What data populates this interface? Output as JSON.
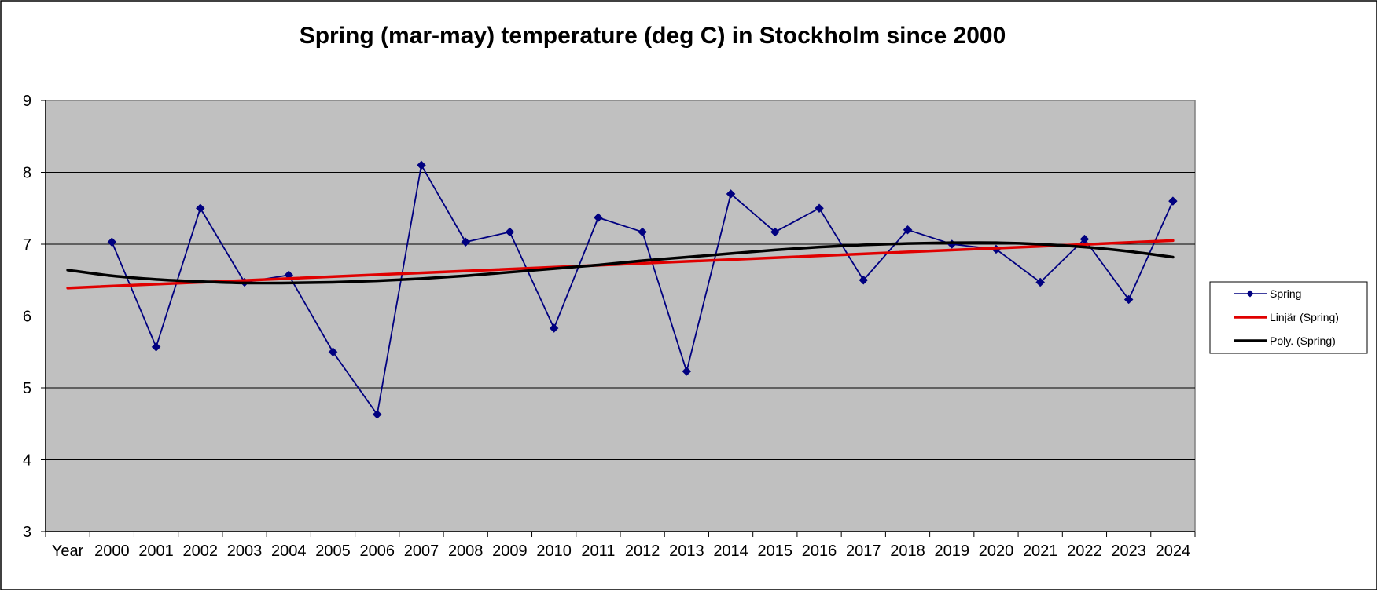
{
  "chart_data": {
    "type": "line",
    "title": "Spring (mar-may) temperature (deg C) in Stockholm since 2000",
    "xlabel": "",
    "ylabel": "",
    "ylim": [
      3,
      9
    ],
    "yticks": [
      "3",
      "4",
      "5",
      "6",
      "7",
      "8",
      "9"
    ],
    "categories": [
      "Year",
      "2000",
      "2001",
      "2002",
      "2003",
      "2004",
      "2005",
      "2006",
      "2007",
      "2008",
      "2009",
      "2010",
      "2011",
      "2012",
      "2013",
      "2014",
      "2015",
      "2016",
      "2017",
      "2018",
      "2019",
      "2020",
      "2021",
      "2022",
      "2023",
      "2024"
    ],
    "grid": true,
    "legend_position": "right",
    "series": [
      {
        "name": "Spring",
        "type": "line-marker",
        "color": "#000080",
        "x": [
          2000,
          2001,
          2002,
          2003,
          2004,
          2005,
          2006,
          2007,
          2008,
          2009,
          2010,
          2011,
          2012,
          2013,
          2014,
          2015,
          2016,
          2017,
          2018,
          2019,
          2020,
          2021,
          2022,
          2023,
          2024
        ],
        "values": [
          7.03,
          5.57,
          7.5,
          6.47,
          6.57,
          5.5,
          4.63,
          8.1,
          7.03,
          7.17,
          5.83,
          7.37,
          7.17,
          5.23,
          7.7,
          7.17,
          7.5,
          6.5,
          7.2,
          7.0,
          6.93,
          6.47,
          7.07,
          6.23,
          7.6
        ]
      },
      {
        "name": "Linjär (Spring)",
        "type": "trend-linear",
        "color": "#e00000",
        "x": [
          "Year",
          2024
        ],
        "values": [
          6.39,
          7.05
        ]
      },
      {
        "name": "Poly. (Spring)",
        "type": "trend-poly",
        "color": "#000000",
        "x": [
          "Year",
          2000,
          2001,
          2002,
          2003,
          2004,
          2005,
          2006,
          2007,
          2008,
          2009,
          2010,
          2011,
          2012,
          2013,
          2014,
          2015,
          2016,
          2017,
          2018,
          2019,
          2020,
          2021,
          2022,
          2023,
          2024
        ],
        "values": [
          6.64,
          6.56,
          6.51,
          6.48,
          6.46,
          6.46,
          6.47,
          6.49,
          6.52,
          6.56,
          6.61,
          6.66,
          6.71,
          6.77,
          6.82,
          6.87,
          6.92,
          6.96,
          6.99,
          7.01,
          7.02,
          7.02,
          7.0,
          6.96,
          6.9,
          6.82
        ]
      }
    ],
    "colors": {
      "plot_background": "#c0c0c0",
      "gridline": "#000000",
      "frame": "#808080"
    }
  }
}
